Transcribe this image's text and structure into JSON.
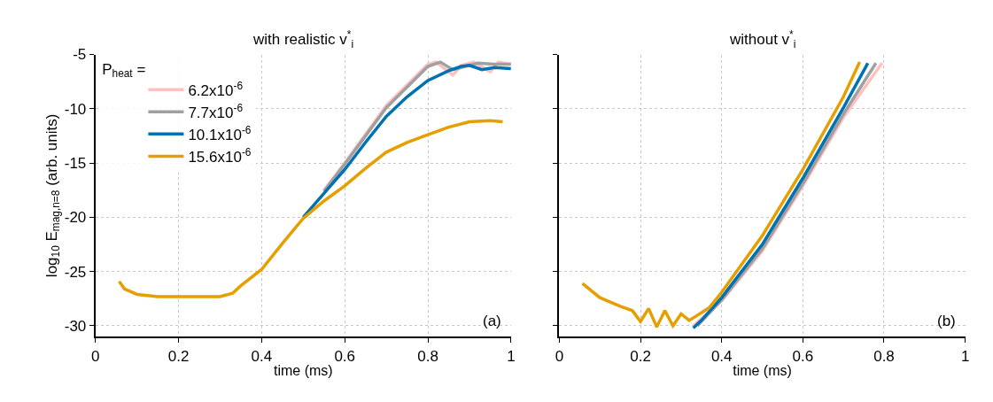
{
  "chart_data": [
    {
      "type": "line",
      "title": "with realistic v$^{*}$$_{i}$",
      "xlabel": "time (ms)",
      "ylabel": "log$_{10}$ E$_{mag,n=8}$ (arb. units)",
      "xlim": [
        0,
        1
      ],
      "xticks": [
        0,
        0.2,
        0.4,
        0.6,
        0.8,
        1
      ],
      "ylim": [
        -31,
        -5
      ],
      "yticks": [
        -30,
        -25,
        -20,
        -15,
        -10,
        -5
      ],
      "grid": true,
      "legend": "top left",
      "legend_title": "P$_{heat}$ =",
      "marker": "none",
      "line_style": "solid",
      "annotations": [
        "(a)"
      ],
      "series": [
        {
          "name": "6.2x10$^{-6}$",
          "color": "#ffc0c0",
          "x": [
            0.55,
            0.6,
            0.7,
            0.8,
            0.82,
            0.86,
            0.88,
            0.91,
            0.95,
            0.97,
            1.0
          ],
          "values": [
            -17.5,
            -15.0,
            -9.7,
            -5.9,
            -5.7,
            -6.9,
            -6.0,
            -5.7,
            -6.6,
            -5.7,
            -5.9
          ]
        },
        {
          "name": "7.7x10$^{-6}$",
          "color": "#a0a0a0",
          "x": [
            0.55,
            0.6,
            0.7,
            0.8,
            0.83,
            0.86,
            0.88,
            0.92,
            0.96,
            1.0
          ],
          "values": [
            -17.6,
            -15.1,
            -9.9,
            -6.1,
            -5.7,
            -6.4,
            -6.2,
            -5.8,
            -5.9,
            -5.9
          ]
        },
        {
          "name": "10.1x10$^{-6}$",
          "color": "#0072b2",
          "x": [
            0.5,
            0.55,
            0.6,
            0.65,
            0.7,
            0.75,
            0.8,
            0.85,
            0.88,
            0.9,
            0.93,
            0.96,
            1.0
          ],
          "values": [
            -20.0,
            -17.8,
            -15.6,
            -13.1,
            -10.7,
            -8.9,
            -7.4,
            -6.5,
            -6.1,
            -6.0,
            -6.4,
            -6.2,
            -6.3
          ]
        },
        {
          "name": "15.6x10$^{-6}$",
          "color": "#e69f00",
          "x": [
            0.057,
            0.07,
            0.1,
            0.15,
            0.3,
            0.33,
            0.35,
            0.4,
            0.45,
            0.5,
            0.55,
            0.6,
            0.65,
            0.7,
            0.75,
            0.8,
            0.85,
            0.9,
            0.95,
            0.98
          ],
          "values": [
            -25.9,
            -26.6,
            -27.1,
            -27.3,
            -27.3,
            -27.0,
            -26.3,
            -24.8,
            -22.4,
            -20.1,
            -18.5,
            -17.1,
            -15.5,
            -14.0,
            -13.1,
            -12.4,
            -11.7,
            -11.2,
            -11.1,
            -11.2
          ]
        }
      ]
    },
    {
      "type": "line",
      "title": "without v$^{*}$$_{i}$",
      "xlabel": "time (ms)",
      "xlim": [
        0,
        1
      ],
      "xticks": [
        0,
        0.2,
        0.4,
        0.6,
        0.8,
        1
      ],
      "ylim": [
        -31,
        -5
      ],
      "yticks": [
        -30,
        -25,
        -20,
        -15,
        -10,
        -5
      ],
      "tick_labels": "x",
      "grid": true,
      "marker": "none",
      "line_style": "solid",
      "annotations": [
        "(b)"
      ],
      "series": [
        {
          "color": "#ffc0c0",
          "x": [
            0.33,
            0.4,
            0.5,
            0.6,
            0.7,
            0.795
          ],
          "values": [
            -30,
            -27.7,
            -23.1,
            -17.1,
            -10.8,
            -5.8
          ]
        },
        {
          "color": "#a0a0a0",
          "x": [
            0.34,
            0.4,
            0.5,
            0.6,
            0.7,
            0.78
          ],
          "values": [
            -30,
            -27.6,
            -22.9,
            -16.9,
            -10.5,
            -5.8
          ]
        },
        {
          "color": "#0072b2",
          "x": [
            0.33,
            0.35,
            0.4,
            0.5,
            0.6,
            0.7,
            0.76
          ],
          "values": [
            -30.2,
            -29.5,
            -27.4,
            -22.5,
            -16.4,
            -9.9,
            -5.8
          ]
        },
        {
          "color": "#e69f00",
          "x": [
            0.057,
            0.1,
            0.15,
            0.18,
            0.2,
            0.22,
            0.24,
            0.26,
            0.28,
            0.3,
            0.32,
            0.35,
            0.37,
            0.4,
            0.5,
            0.6,
            0.7,
            0.74
          ],
          "values": [
            -26.1,
            -27.4,
            -28.2,
            -28.6,
            -29.6,
            -28.4,
            -30.1,
            -28.6,
            -30.0,
            -28.9,
            -29.5,
            -28.8,
            -28.3,
            -26.9,
            -21.7,
            -15.6,
            -8.9,
            -5.7
          ]
        }
      ]
    }
  ]
}
